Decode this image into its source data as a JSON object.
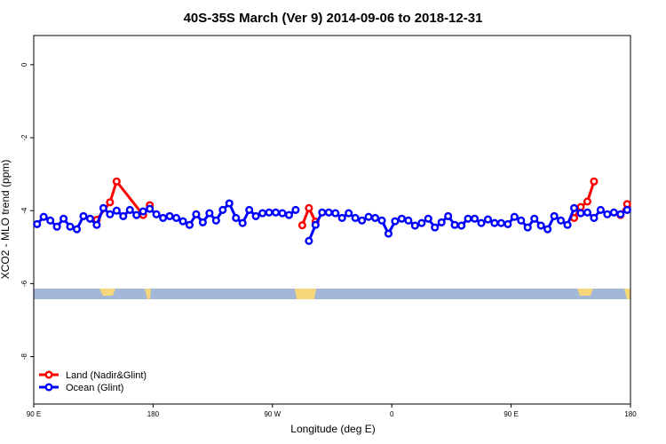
{
  "chart_data": {
    "type": "line",
    "title": "40S-35S March (Ver 9)   2014-09-06 to 2018-12-31",
    "x_label": "Longitude (deg E)",
    "y_label": "XCO2 - MLO trend (ppm)",
    "xlim": [
      90,
      540
    ],
    "ylim": [
      -9.3,
      0.8
    ],
    "xticks": [
      {
        "value": 90,
        "label": "90 E"
      },
      180,
      {
        "value": 270,
        "label": "90 W"
      },
      {
        "value": 360,
        "label": "0"
      },
      {
        "value": 450,
        "label": "90 E"
      },
      {
        "value": 540,
        "label": "180"
      }
    ],
    "yticks": [
      0,
      -2,
      -4,
      -6,
      -8
    ],
    "legend": "bottom-left",
    "series": [
      {
        "name": "Land (Nadir&Glint)",
        "color": "#ff0000",
        "x": [
          137.5,
          147.5,
          152.5,
          172.5,
          177.5,
          230,
          292.5,
          297.5,
          302.5,
          400,
          497.5,
          502.5,
          507.5,
          512.5,
          522.5,
          532.5,
          537.5
        ],
        "values": [
          -4.25,
          -3.77,
          -3.2,
          -4.12,
          -3.85,
          null,
          -4.4,
          -3.93,
          -4.3,
          null,
          -4.2,
          -3.9,
          -3.75,
          -3.2,
          null,
          -4.12,
          -3.82
        ]
      },
      {
        "name": "Ocean (Glint)",
        "color": "#0000ff",
        "x": [
          92.5,
          97.5,
          102.5,
          107.5,
          112.5,
          117.5,
          122.5,
          127.5,
          132.5,
          137.5,
          142.5,
          147.5,
          152.5,
          157.5,
          162.5,
          167.5,
          172.5,
          177.5,
          182.5,
          187.5,
          192.5,
          197.5,
          202.5,
          207.5,
          212.5,
          217.5,
          222.5,
          227.5,
          232.5,
          237.5,
          242.5,
          247.5,
          252.5,
          257.5,
          262.5,
          267.5,
          272.5,
          277.5,
          282.5,
          287.5,
          292.5,
          297.5,
          302.5,
          307.5,
          312.5,
          317.5,
          322.5,
          327.5,
          332.5,
          337.5,
          342.5,
          347.5,
          352.5,
          357.5,
          362.5,
          367.5,
          372.5,
          377.5,
          382.5,
          387.5,
          392.5,
          397.5,
          402.5,
          407.5,
          412.5,
          417.5,
          422.5,
          427.5,
          432.5,
          437.5,
          442.5,
          447.5,
          452.5,
          457.5,
          462.5,
          467.5,
          472.5,
          477.5,
          482.5,
          487.5,
          492.5,
          497.5,
          502.5,
          507.5,
          512.5,
          517.5,
          522.5,
          527.5,
          532.5,
          537.5
        ],
        "values": [
          -4.37,
          -4.17,
          -4.27,
          -4.44,
          -4.22,
          -4.44,
          -4.51,
          -4.15,
          -4.22,
          -4.39,
          -3.93,
          -4.1,
          -4.0,
          -4.15,
          -3.98,
          -4.12,
          -4.02,
          -3.95,
          -4.1,
          -4.2,
          -4.15,
          -4.2,
          -4.29,
          -4.39,
          -4.1,
          -4.32,
          -4.07,
          -4.27,
          -3.98,
          -3.8,
          -4.2,
          -4.34,
          -3.98,
          -4.15,
          -4.07,
          -4.05,
          -4.05,
          -4.07,
          -4.12,
          -3.98,
          null,
          -4.83,
          -4.39,
          -4.05,
          -4.05,
          -4.07,
          -4.2,
          -4.07,
          -4.2,
          -4.27,
          -4.17,
          -4.2,
          -4.27,
          -4.63,
          -4.29,
          -4.22,
          -4.27,
          -4.41,
          -4.34,
          -4.22,
          -4.46,
          -4.32,
          -4.15,
          -4.39,
          -4.41,
          -4.22,
          -4.22,
          -4.34,
          -4.24,
          -4.34,
          -4.34,
          -4.37,
          -4.17,
          -4.27,
          -4.46,
          -4.22,
          -4.41,
          -4.51,
          -4.15,
          -4.27,
          -4.39,
          -3.93,
          -4.07,
          -4.05,
          -4.2,
          -3.98,
          -4.1,
          -4.05,
          -4.1,
          -3.98
        ]
      }
    ]
  }
}
